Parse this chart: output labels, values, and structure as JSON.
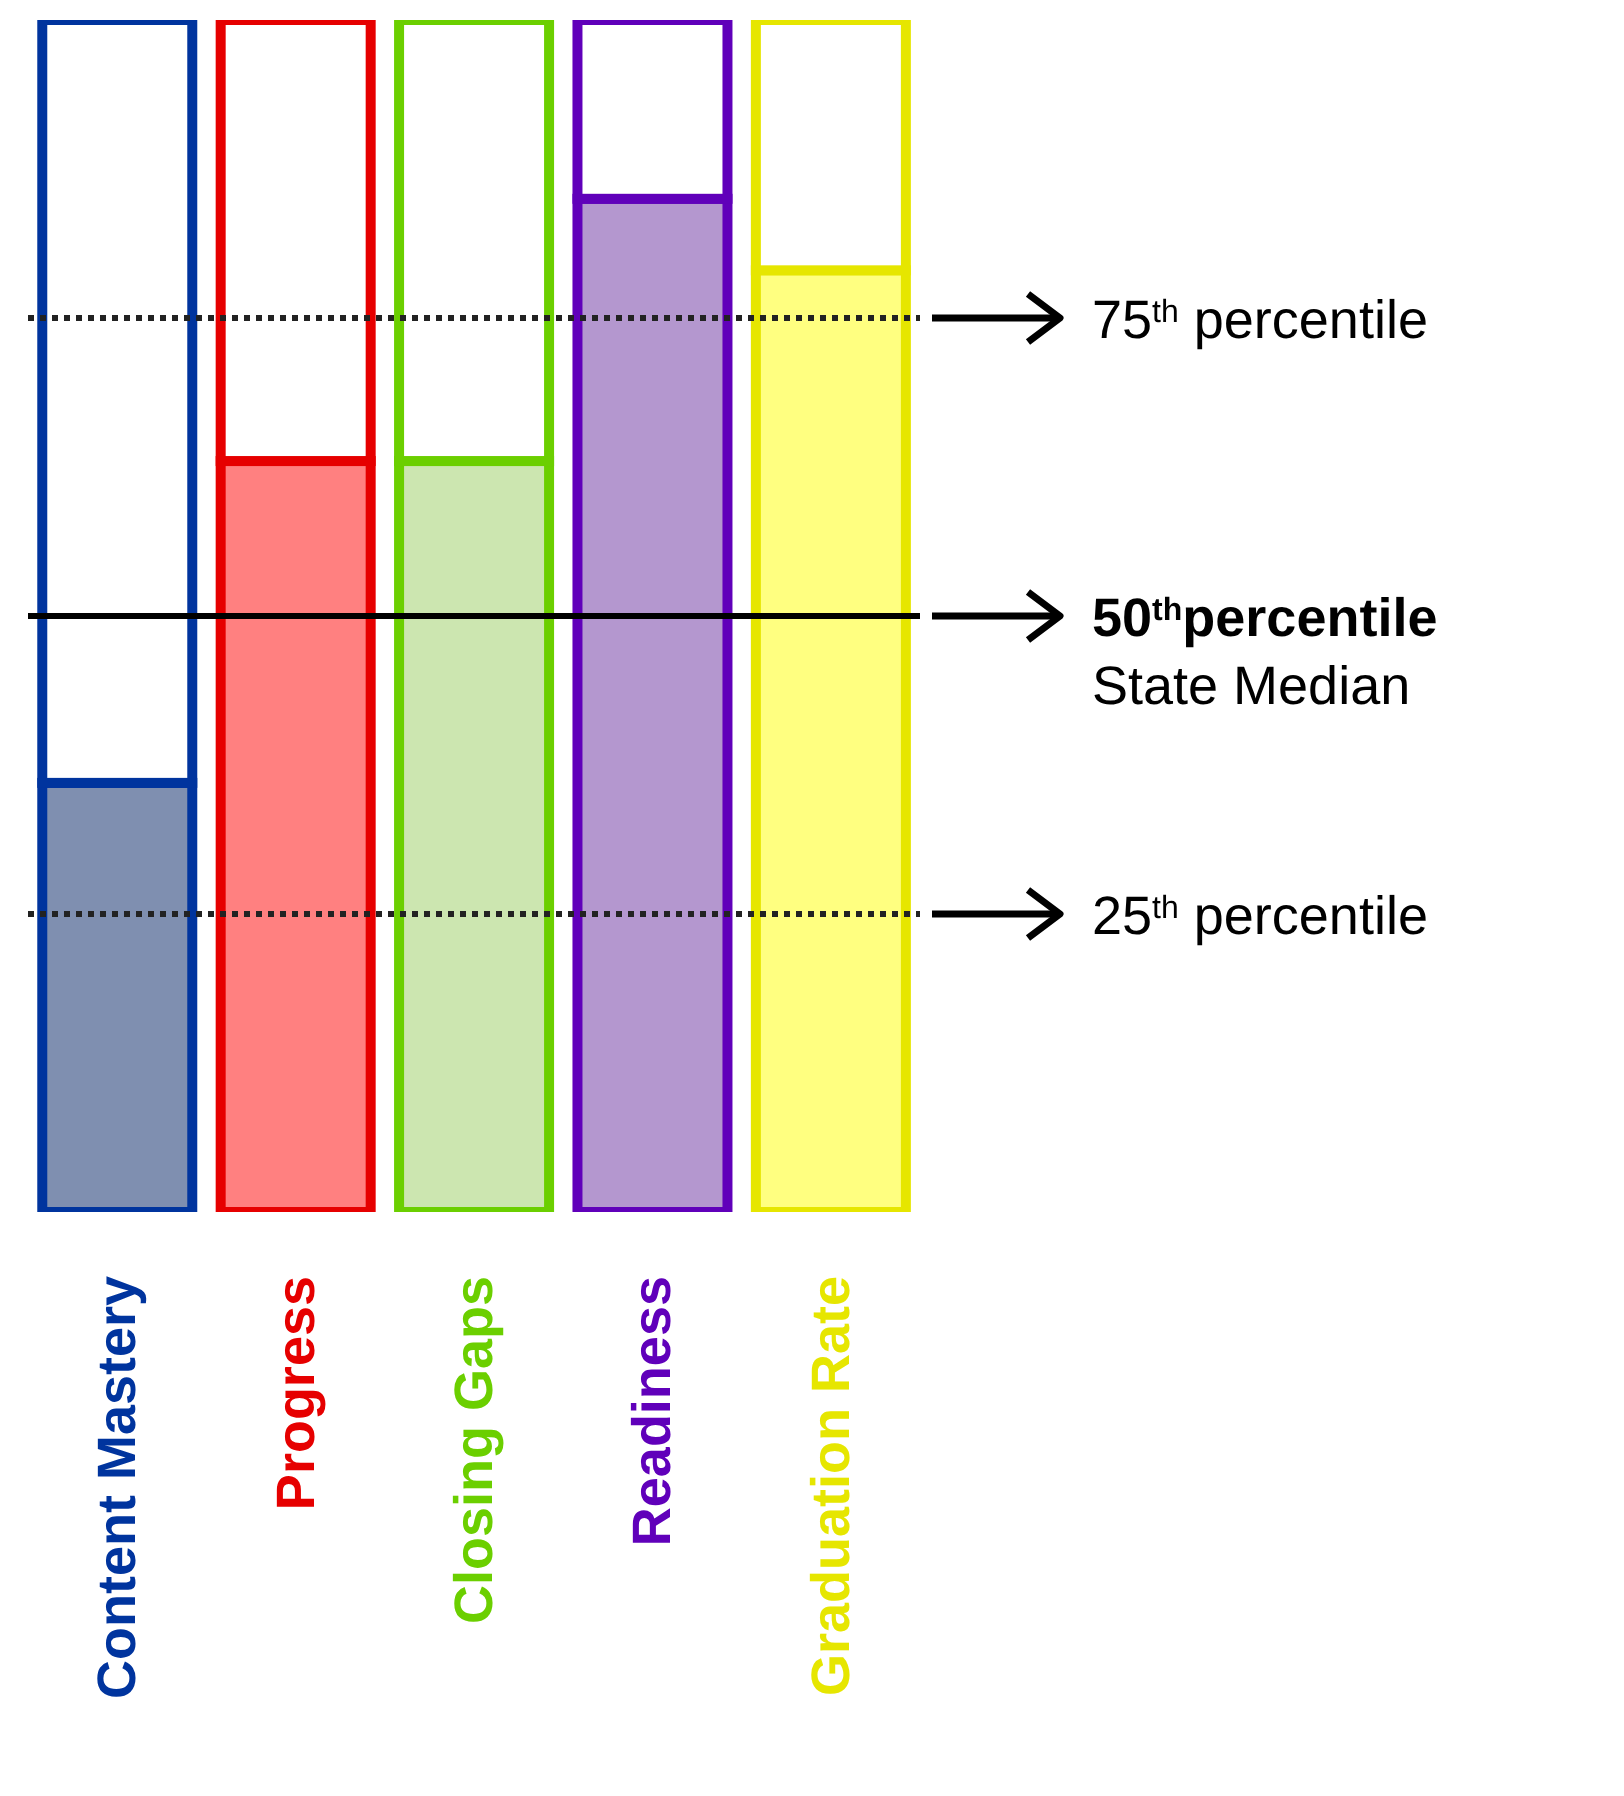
{
  "chart_data": {
    "type": "bar",
    "stacked": true,
    "categories": [
      "Content Mastery",
      "Progress",
      "Closing Gaps",
      "Readiness",
      "Graduation Rate"
    ],
    "series": [
      {
        "colors": [
          "#7f8fb0",
          "#ff8080",
          "#cce6b0",
          "#b497cf",
          "#ffff80"
        ],
        "values": [
          36,
          63,
          63,
          85,
          79
        ]
      },
      {
        "color": "#ffffff",
        "values": [
          64,
          37,
          37,
          15,
          21
        ]
      }
    ],
    "ylim": [
      0,
      100
    ],
    "ref_lines": [
      {
        "axis": "y",
        "value": 75,
        "label": "75$^{th}$ percentile",
        "line_style": "dotted"
      },
      {
        "axis": "y",
        "value": 50,
        "label": "50$^{th}$percentile\nState Median",
        "line_style": "solid"
      },
      {
        "axis": "y",
        "value": 25,
        "label": "25$^{th}$ percentile",
        "line_style": "dotted"
      }
    ]
  }
}
